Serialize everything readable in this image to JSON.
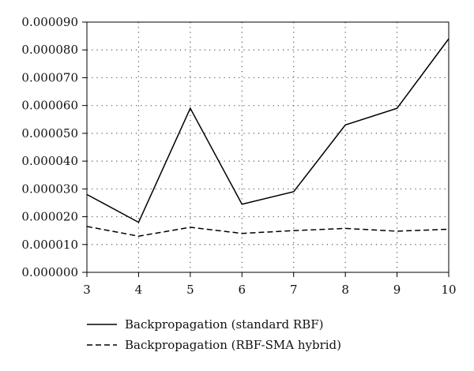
{
  "chart_data": {
    "type": "line",
    "title": "",
    "xlabel": "",
    "ylabel": "",
    "x": [
      3,
      4,
      5,
      6,
      7,
      8,
      9,
      10
    ],
    "xlim": [
      3,
      10
    ],
    "ylim": [
      0,
      9e-05
    ],
    "x_ticks": [
      "3",
      "4",
      "5",
      "6",
      "7",
      "8",
      "9",
      "10"
    ],
    "y_ticks": [
      "0.000000",
      "0.000010",
      "0.000020",
      "0.000030",
      "0.000040",
      "0.000050",
      "0.000060",
      "0.000070",
      "0.000080",
      "0.000090"
    ],
    "y_tick_values": [
      0,
      1e-05,
      2e-05,
      3e-05,
      4e-05,
      5e-05,
      6e-05,
      7e-05,
      8e-05,
      9e-05
    ],
    "grid": "dotted",
    "legend_placement": "bottom",
    "series": [
      {
        "name": "Backpropagation (standard RBF)",
        "line_style": "solid",
        "color": "#000000",
        "values": [
          2.8e-05,
          1.8e-05,
          5.9e-05,
          2.45e-05,
          2.9e-05,
          5.3e-05,
          5.9e-05,
          8.4e-05
        ]
      },
      {
        "name": "Backpropagation (RBF-SMA hybrid)",
        "line_style": "dashed",
        "color": "#000000",
        "values": [
          1.65e-05,
          1.3e-05,
          1.62e-05,
          1.4e-05,
          1.5e-05,
          1.58e-05,
          1.48e-05,
          1.55e-05
        ]
      }
    ]
  }
}
